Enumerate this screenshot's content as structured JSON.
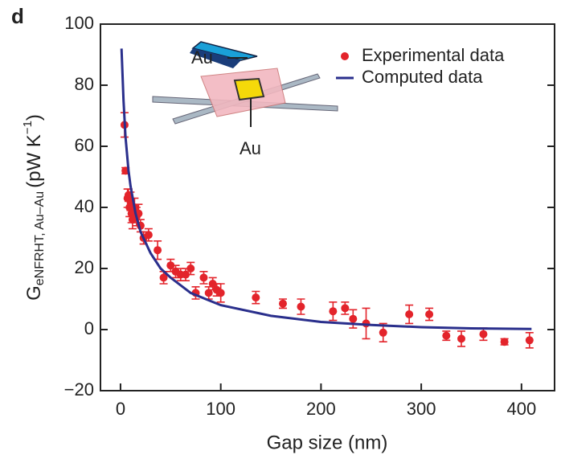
{
  "chart_data": {
    "type": "scatter",
    "panel_label": "d",
    "x_label": "Gap size (nm)",
    "y_label": {
      "symbol": "G",
      "subscript": "eNFRHT, Au–Au",
      "unit": "(pW K",
      "exponent": "−1",
      "close": ")"
    },
    "annotations": [
      "Au",
      "Au"
    ],
    "xlim": [
      -20,
      433
    ],
    "ylim": [
      -20,
      100
    ],
    "xticks": [
      0,
      100,
      200,
      300,
      400
    ],
    "yticks": [
      {
        "value": -20,
        "label": "−20"
      },
      0,
      20,
      40,
      60,
      80,
      100
    ],
    "legend": "top-right",
    "series": [
      {
        "name": "Experimental data",
        "color": "#e3242b",
        "style": "markers",
        "x": [
          4,
          5,
          7,
          8,
          9,
          10,
          11,
          12,
          14,
          16,
          18,
          20,
          23,
          28,
          37,
          43,
          50,
          55,
          60,
          65,
          70,
          75,
          83,
          88,
          92,
          96,
          100,
          135,
          162,
          180,
          212,
          224,
          232,
          245,
          262,
          288,
          308,
          325,
          340,
          362,
          383,
          408
        ],
        "values": [
          67,
          52,
          43,
          44,
          40,
          42,
          38,
          36,
          40,
          37,
          38,
          34,
          30,
          31,
          26,
          17,
          21,
          19,
          18,
          18,
          20,
          12,
          17,
          12,
          15,
          13,
          12,
          10.5,
          8.5,
          7.5,
          6,
          7,
          3.5,
          2,
          -1,
          5,
          5,
          -2,
          -3,
          -1.5,
          -4,
          -3.5
        ],
        "errors": [
          4,
          1,
          3,
          2,
          3,
          3,
          3,
          3,
          3,
          3,
          3,
          2,
          2,
          2,
          3,
          2,
          2,
          2,
          2,
          2,
          2,
          2,
          2,
          2,
          2,
          2,
          3,
          2,
          1.5,
          2.5,
          3,
          2,
          3,
          5,
          3,
          3,
          2,
          1.5,
          2.5,
          2,
          1,
          2.5
        ]
      },
      {
        "name": "Computed data",
        "color": "#2a2f8c",
        "style": "line",
        "x": [
          1,
          3,
          5,
          8,
          10,
          15,
          20,
          30,
          40,
          50,
          70,
          100,
          150,
          200,
          250,
          300,
          350,
          410
        ],
        "values": [
          92,
          75,
          63,
          52,
          47,
          38,
          32,
          25,
          20,
          17,
          12,
          8,
          4.5,
          2.5,
          1.5,
          0.8,
          0.4,
          0.2
        ]
      }
    ]
  }
}
